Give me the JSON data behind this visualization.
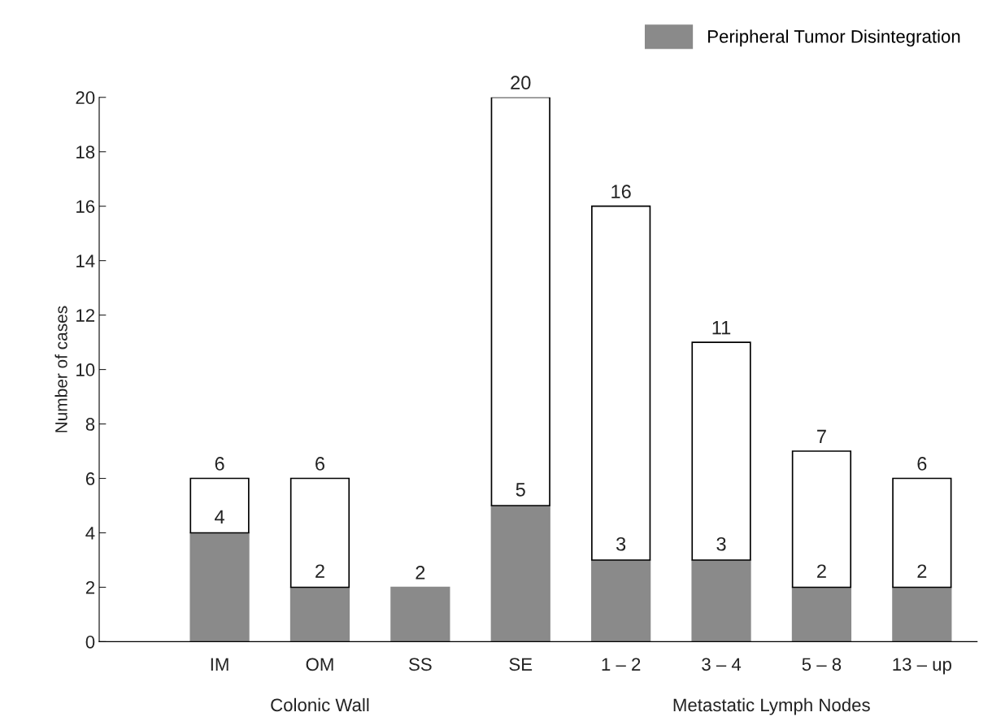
{
  "chart_data": {
    "type": "bar",
    "stacked": true,
    "ylabel": "Number of cases",
    "categories": [
      "IM",
      "OM",
      "SS",
      "SE",
      "1 – 2",
      "3 – 4",
      "5 – 8",
      "13 – up"
    ],
    "series": [
      {
        "name": "Peripheral Tumor Disintegration",
        "color": "#8a8a8a",
        "values": [
          4,
          2,
          2,
          5,
          3,
          3,
          2,
          2
        ],
        "value_labels": [
          "4",
          "2",
          null,
          "5",
          "3",
          "3",
          "2",
          "2"
        ]
      },
      {
        "color": "#ffffff",
        "values": [
          2,
          4,
          0,
          15,
          13,
          8,
          5,
          4
        ]
      }
    ],
    "totals": [
      "6",
      "6",
      "2",
      "20",
      "16",
      "11",
      "7",
      "6"
    ],
    "ylim": [
      0,
      20
    ],
    "yticks": [
      0,
      2,
      4,
      6,
      8,
      10,
      12,
      14,
      16,
      18,
      20
    ],
    "grid": false,
    "legend": "top right",
    "annotations": [
      "Colonic Wall",
      "Metastatic Lymph Nodes"
    ]
  }
}
